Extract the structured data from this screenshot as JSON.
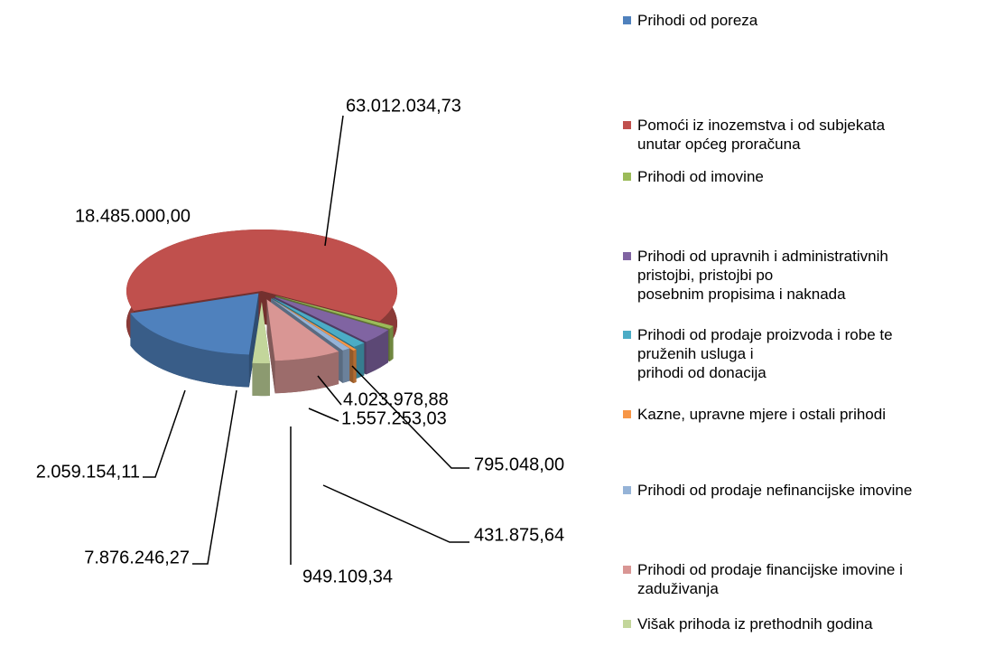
{
  "chart_data": {
    "type": "pie",
    "categories": [
      "Prihodi od poreza",
      "Pomoći iz inozemstva i od subjekata\nunutar  općeg proračuna",
      "Prihodi od imovine",
      "Prihodi od upravnih i administrativnih\npristojbi, pristojbi po\nposebnim propisima i naknada",
      "Prihodi od prodaje proizvoda i robe te\npruženih usluga i\nprihodi od donacija",
      "Kazne, upravne mjere i ostali prihodi",
      "Prihodi od prodaje nefinancijske imovine",
      "Prihodi od prodaje financijske imovine i\nzaduživanja",
      "Višak prihoda iz prethodnih godina"
    ],
    "values": [
      18485000.0,
      63012034.73,
      795048.0,
      4023978.88,
      1557253.03,
      431875.64,
      949109.34,
      7876246.27,
      2059154.11
    ],
    "value_labels": [
      "18.485.000,00",
      "63.012.034,73",
      "795.048,00",
      "4.023.978,88",
      "1.557.253,03",
      "431.875,64",
      "949.109,34",
      "7.876.246,27",
      "2.059.154,11"
    ],
    "colors": [
      "#4f81bd",
      "#c0504d",
      "#9bbb59",
      "#8064a2",
      "#4bacc6",
      "#f79646",
      "#95b3d7",
      "#d99694",
      "#c3d69b"
    ],
    "legend": "right"
  }
}
